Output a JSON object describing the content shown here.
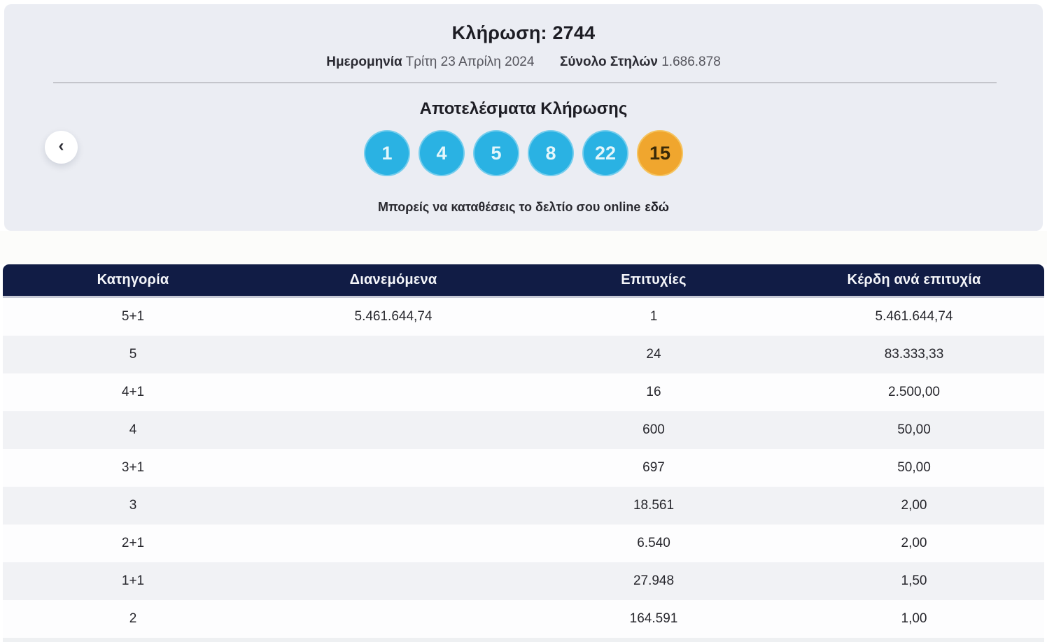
{
  "colors": {
    "hero_background": "#ebedf3",
    "header_navy": "#111c45",
    "ball_blue": "#2ab2e3",
    "ball_joker_orange": "#f0a62e"
  },
  "hero": {
    "title": "Κλήρωση: 2744",
    "date_label": "Ημερομηνία",
    "date_value": "Τρίτη 23 Απρίλη 2024",
    "columns_label": "Σύνολο Στηλών",
    "columns_value": "1.686.878",
    "results_title": "Αποτελέσματα Κλήρωσης",
    "numbers": [
      "1",
      "4",
      "5",
      "8",
      "22"
    ],
    "joker": "15",
    "cta_text": "Μπορείς να καταθέσεις το δελτίο σου online",
    "cta_link": "εδώ",
    "back_chevron": "‹"
  },
  "table": {
    "headers": [
      "Κατηγορία",
      "Διανεμόμενα",
      "Επιτυχίες",
      "Κέρδη ανά επιτυχία"
    ],
    "rows": [
      {
        "category": "5+1",
        "distributed": "5.461.644,74",
        "winners": "1",
        "prize": "5.461.644,74"
      },
      {
        "category": "5",
        "distributed": "",
        "winners": "24",
        "prize": "83.333,33"
      },
      {
        "category": "4+1",
        "distributed": "",
        "winners": "16",
        "prize": "2.500,00"
      },
      {
        "category": "4",
        "distributed": "",
        "winners": "600",
        "prize": "50,00"
      },
      {
        "category": "3+1",
        "distributed": "",
        "winners": "697",
        "prize": "50,00"
      },
      {
        "category": "3",
        "distributed": "",
        "winners": "18.561",
        "prize": "2,00"
      },
      {
        "category": "2+1",
        "distributed": "",
        "winners": "6.540",
        "prize": "2,00"
      },
      {
        "category": "1+1",
        "distributed": "",
        "winners": "27.948",
        "prize": "1,50"
      },
      {
        "category": "2",
        "distributed": "",
        "winners": "164.591",
        "prize": "1,00"
      }
    ]
  }
}
